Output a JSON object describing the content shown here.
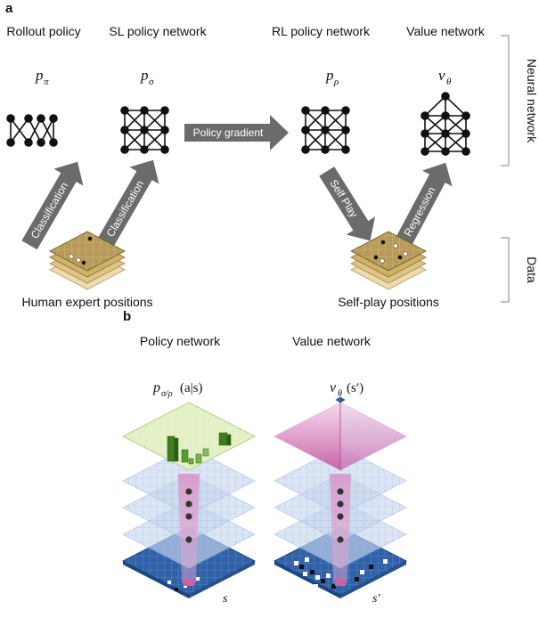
{
  "panel_a": {
    "label": "a",
    "networks": [
      {
        "title": "Rollout policy",
        "symbol": "p",
        "sub": "π"
      },
      {
        "title": "SL policy network",
        "symbol": "p",
        "sub": "σ"
      },
      {
        "title": "RL policy network",
        "symbol": "p",
        "sub": "ρ"
      },
      {
        "title": "Value network",
        "symbol": "v",
        "sub": "θ"
      }
    ],
    "arrows": {
      "classification_1": "Classification",
      "classification_2": "Classification",
      "policy_gradient": "Policy gradient",
      "self_play": "Self Play",
      "regression": "Regression"
    },
    "positions": {
      "human": "Human expert positions",
      "self_play": "Self-play positions"
    },
    "side_labels": {
      "neural_network": "Neural network",
      "data": "Data"
    }
  },
  "panel_b": {
    "label": "b",
    "policy": {
      "title": "Policy network",
      "output_symbol": "p",
      "output_sub": "σ/ρ",
      "output_args": "(a|s)",
      "input_label": "s"
    },
    "value": {
      "title": "Value network",
      "output_symbol": "v",
      "output_sub": "θ",
      "output_args": "(s′)",
      "input_label": "s′"
    }
  },
  "colors": {
    "arrow_gray": "#6b6b6b",
    "board_wood": "#b99a58",
    "board_blue": "#2f62a8",
    "policy_green": "#e3efc4",
    "value_pink": "#cc66aa",
    "layer_blue": "#c9d8ef"
  }
}
